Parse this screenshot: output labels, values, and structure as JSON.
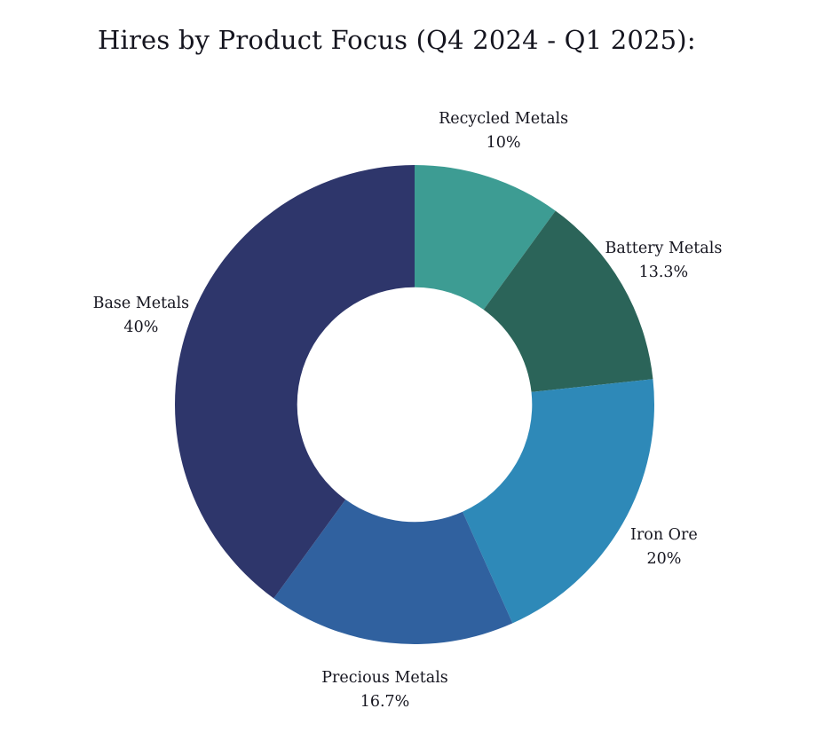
{
  "page": {
    "background": "#ffffff",
    "text_color": "#15151f"
  },
  "chart_data": {
    "type": "pie",
    "subtype": "donut",
    "title": "Hires by Product Focus (Q4 2024 - Q1 2025):",
    "categories": [
      "Recycled Metals",
      "Battery Metals",
      "Iron Ore",
      "Precious Metals",
      "Base Metals"
    ],
    "values": [
      10,
      13.3,
      20,
      16.7,
      40
    ],
    "value_labels": [
      "10%",
      "13.3%",
      "20%",
      "16.7%",
      "40%"
    ],
    "colors": [
      "#3d9c93",
      "#2b6459",
      "#2e89b8",
      "#30619f",
      "#2e366b"
    ],
    "start_angle_deg": 0,
    "direction": "clockwise",
    "inner_radius_ratio": 0.49,
    "label_distance_ratio": 1.2,
    "labels_position": "outside",
    "legend": "none",
    "grid": false,
    "background": "#ffffff",
    "text_color": "#15151f"
  }
}
